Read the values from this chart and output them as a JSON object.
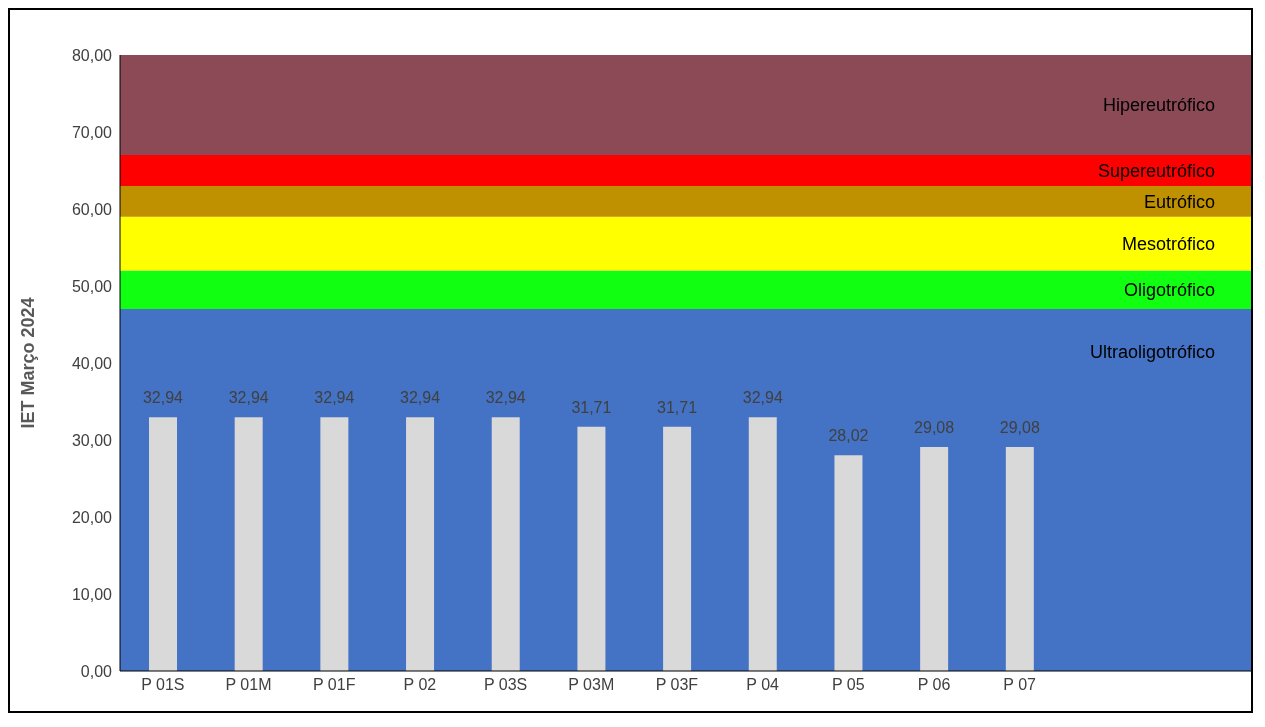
{
  "chart_data": {
    "type": "bar",
    "ylabel": "IET Março 2024",
    "categories": [
      "P 01S",
      "P 01M",
      "P 01F",
      "P 02",
      "P 03S",
      "P 03M",
      "P 03F",
      "P 04",
      "P 05",
      "P 06",
      "P 07"
    ],
    "values": [
      32.94,
      32.94,
      32.94,
      32.94,
      32.94,
      31.71,
      31.71,
      32.94,
      28.02,
      29.08,
      29.08
    ],
    "value_labels": [
      "32,94",
      "32,94",
      "32,94",
      "32,94",
      "32,94",
      "31,71",
      "31,71",
      "32,94",
      "28,02",
      "29,08",
      "29,08"
    ],
    "color": "#d9d9d9",
    "ylim": [
      0,
      80
    ],
    "yticks": [
      {
        "value": 0,
        "label": "0,00"
      },
      {
        "value": 10,
        "label": "10,00"
      },
      {
        "value": 20,
        "label": "20,00"
      },
      {
        "value": 30,
        "label": "30,00"
      },
      {
        "value": 40,
        "label": "40,00"
      },
      {
        "value": 50,
        "label": "50,00"
      },
      {
        "value": 60,
        "label": "60,00"
      },
      {
        "value": 70,
        "label": "70,00"
      },
      {
        "value": 80,
        "label": "80,00"
      }
    ],
    "bands": [
      {
        "axis": "y",
        "from": 0,
        "to": 47,
        "label": "Ultraoligotrófico",
        "color": "#4472c4"
      },
      {
        "axis": "y",
        "from": 47,
        "to": 52,
        "label": "Oligotrófico",
        "color": "#11ff11"
      },
      {
        "axis": "y",
        "from": 52,
        "to": 59,
        "label": "Mesotrófico",
        "color": "#ffff00"
      },
      {
        "axis": "y",
        "from": 59,
        "to": 63,
        "label": "Eutrófico",
        "color": "#bf9000"
      },
      {
        "axis": "y",
        "from": 63,
        "to": 67,
        "label": "Supereutrófico",
        "color": "#ff0000"
      },
      {
        "axis": "y",
        "from": 67,
        "to": 80,
        "label": "Hipereutrófico",
        "color": "#8b4a55"
      }
    ],
    "grid": false,
    "legend": false
  }
}
